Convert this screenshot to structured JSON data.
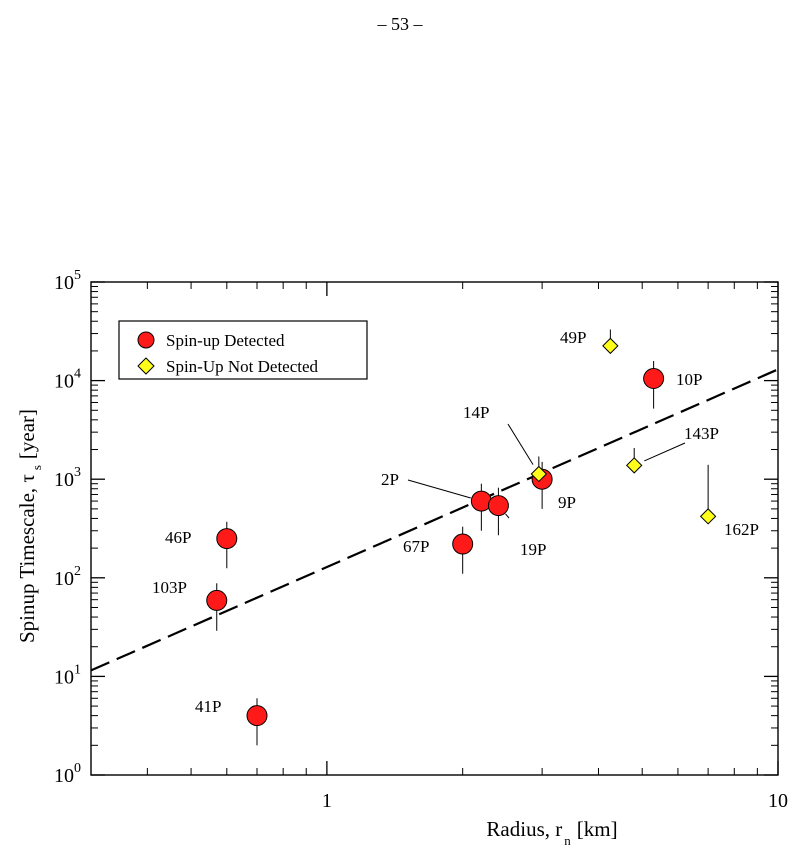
{
  "page_number": "– 53 –",
  "chart_data": {
    "type": "scatter",
    "x_scale": "log",
    "y_scale": "log",
    "xlim": [
      0.3,
      10
    ],
    "ylim": [
      1,
      100000
    ],
    "xlabel_main": "Radius, r",
    "xlabel_sub": "n",
    "xlabel_unit": "[km]",
    "ylabel_main": "Spinup Timescale, τ",
    "ylabel_sub": "s",
    "ylabel_unit": "[year]",
    "x_ticks": [
      {
        "value": 1,
        "label": "1"
      },
      {
        "value": 10,
        "label": "10"
      }
    ],
    "y_ticks": [
      {
        "value": 1,
        "base": "10",
        "exp": "0"
      },
      {
        "value": 10,
        "base": "10",
        "exp": "1"
      },
      {
        "value": 100,
        "base": "10",
        "exp": "2"
      },
      {
        "value": 1000,
        "base": "10",
        "exp": "3"
      },
      {
        "value": 10000,
        "base": "10",
        "exp": "4"
      },
      {
        "value": 100000,
        "base": "10",
        "exp": "5"
      }
    ],
    "legend_position": "top-left",
    "grid": false,
    "series": [
      {
        "name": "Spin-up Detected",
        "marker": "circle",
        "color": "#ff1a1a",
        "points": [
          {
            "label": "46P",
            "x": 0.6,
            "y": 250,
            "ylow": 125,
            "yhigh": 370
          },
          {
            "label": "103P",
            "x": 0.57,
            "y": 59,
            "ylow": 29,
            "yhigh": 88
          },
          {
            "label": "41P",
            "x": 0.7,
            "y": 4,
            "ylow": 2,
            "yhigh": 6
          },
          {
            "label": "67P",
            "x": 2.0,
            "y": 220,
            "ylow": 110,
            "yhigh": 330
          },
          {
            "label": "2P",
            "x": 2.2,
            "y": 600,
            "ylow": 300,
            "yhigh": 900
          },
          {
            "label": "19P",
            "x": 2.4,
            "y": 540,
            "ylow": 270,
            "yhigh": 820
          },
          {
            "label": "9P",
            "x": 3.0,
            "y": 1000,
            "ylow": 500,
            "yhigh": 1500
          },
          {
            "label": "10P",
            "x": 5.3,
            "y": 10500,
            "ylow": 5200,
            "yhigh": 15800
          }
        ]
      },
      {
        "name": "Spin-Up Not Detected",
        "marker": "diamond",
        "color": "#ffff1a",
        "points": [
          {
            "label": "49P",
            "x": 4.25,
            "y": 22500,
            "ylow": null,
            "yhigh": 33000
          },
          {
            "label": "14P",
            "x": 2.95,
            "y": 1130,
            "ylow": null,
            "yhigh": 1700
          },
          {
            "label": "143P",
            "x": 4.8,
            "y": 1380,
            "ylow": null,
            "yhigh": 2070
          },
          {
            "label": "162P",
            "x": 7.0,
            "y": 420,
            "ylow": null,
            "yhigh": 1400
          }
        ]
      }
    ],
    "fit_line": {
      "style": "dashed",
      "x": [
        0.3,
        10
      ],
      "y": [
        11.5,
        13000
      ]
    }
  }
}
